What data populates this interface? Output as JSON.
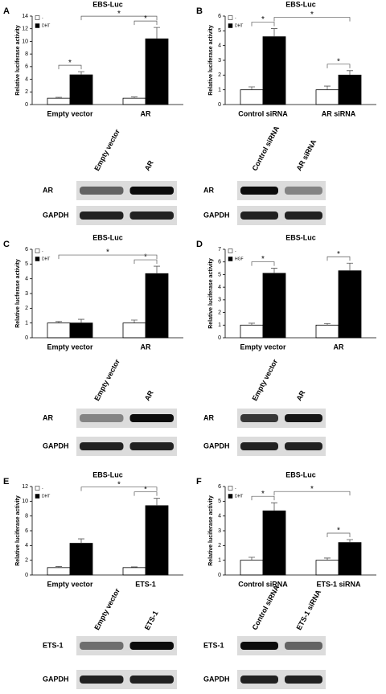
{
  "chart_data": [
    {
      "type": "bar",
      "panel_label": "A",
      "title": "EBS-Luc",
      "ylabel": "Relative luciferase activity",
      "categories": [
        "Empty vector",
        "AR"
      ],
      "series": [
        {
          "name": "-",
          "color": "#ffffff",
          "values": [
            1,
            1
          ],
          "errors": [
            0.15,
            0.2
          ]
        },
        {
          "name": "DHT",
          "color": "#000000",
          "values": [
            4.7,
            10.4
          ],
          "errors": [
            0.5,
            1.8
          ]
        }
      ],
      "ylim": [
        0,
        14
      ],
      "yticks": [
        0,
        2,
        4,
        6,
        8,
        10,
        12,
        14
      ],
      "legend": "upper left",
      "annotations": [
        "*",
        "*",
        "*"
      ]
    },
    {
      "type": "bar",
      "panel_label": "B",
      "title": "EBS-Luc",
      "ylabel": "Relative luciferase activity",
      "categories": [
        "Control siRNA",
        "AR siRNA"
      ],
      "series": [
        {
          "name": "-",
          "color": "#ffffff",
          "values": [
            1,
            1
          ],
          "errors": [
            0.2,
            0.25
          ]
        },
        {
          "name": "DHT",
          "color": "#000000",
          "values": [
            4.6,
            2.0
          ],
          "errors": [
            0.55,
            0.3
          ]
        }
      ],
      "ylim": [
        0,
        6
      ],
      "yticks": [
        0,
        1,
        2,
        3,
        4,
        5,
        6
      ],
      "legend": "upper left",
      "annotations": [
        "*",
        "*",
        "*"
      ]
    },
    {
      "type": "bar",
      "panel_label": "C",
      "title": "EBS-Luc",
      "ylabel": "Relative lucferase activity",
      "categories": [
        "Empty vector",
        "AR"
      ],
      "series": [
        {
          "name": "-",
          "color": "#ffffff",
          "values": [
            1,
            1
          ],
          "errors": [
            0.1,
            0.2
          ]
        },
        {
          "name": "DHT",
          "color": "#000000",
          "values": [
            1,
            4.35
          ],
          "errors": [
            0.25,
            0.5
          ]
        }
      ],
      "ylim": [
        0,
        6
      ],
      "yticks": [
        0,
        1,
        2,
        3,
        4,
        5,
        6
      ],
      "legend": "upper left",
      "annotations": [
        "*",
        "*"
      ]
    },
    {
      "type": "bar",
      "panel_label": "D",
      "title": "EBS-Luc",
      "ylabel": "Relative luciferase activity",
      "categories": [
        "Empty vector",
        "AR"
      ],
      "series": [
        {
          "name": "-",
          "color": "#ffffff",
          "values": [
            1,
            1
          ],
          "errors": [
            0.15,
            0.12
          ]
        },
        {
          "name": "HGF",
          "color": "#000000",
          "values": [
            5.1,
            5.3
          ],
          "errors": [
            0.4,
            0.6
          ]
        }
      ],
      "ylim": [
        0,
        7
      ],
      "yticks": [
        0,
        1,
        2,
        3,
        4,
        5,
        6,
        7
      ],
      "legend": "upper left",
      "annotations": [
        "*",
        "*"
      ]
    },
    {
      "type": "bar",
      "panel_label": "E",
      "title": "EBS-Luc",
      "ylabel": "Relative luciferase activity",
      "categories": [
        "Empty vector",
        "ETS-1"
      ],
      "series": [
        {
          "name": "-",
          "color": "#ffffff",
          "values": [
            1,
            1
          ],
          "errors": [
            0.15,
            0.1
          ]
        },
        {
          "name": "DHT",
          "color": "#000000",
          "values": [
            4.3,
            9.4
          ],
          "errors": [
            0.6,
            1.0
          ]
        }
      ],
      "ylim": [
        0,
        12
      ],
      "yticks": [
        0,
        2,
        4,
        6,
        8,
        10,
        12
      ],
      "legend": "upper left",
      "annotations": [
        "*",
        "*"
      ]
    },
    {
      "type": "bar",
      "panel_label": "F",
      "title": "EBS-Luc",
      "ylabel": "Relative luciferase activity",
      "categories": [
        "Control siRNA",
        "ETS-1 siRNA"
      ],
      "series": [
        {
          "name": "-",
          "color": "#ffffff",
          "values": [
            1,
            1
          ],
          "errors": [
            0.2,
            0.15
          ]
        },
        {
          "name": "DHT",
          "color": "#000000",
          "values": [
            4.35,
            2.2
          ],
          "errors": [
            0.55,
            0.2
          ]
        }
      ],
      "ylim": [
        0,
        6
      ],
      "yticks": [
        0,
        1,
        2,
        3,
        4,
        5,
        6
      ],
      "legend": "upper left",
      "annotations": [
        "*",
        "*",
        "*"
      ]
    }
  ],
  "blots": [
    {
      "lanes": [
        "Empty vector",
        "AR"
      ],
      "rows": [
        "AR",
        "GAPDH"
      ]
    },
    {
      "lanes": [
        "Control siRNA",
        "AR siRNA"
      ],
      "rows": [
        "AR",
        "GAPDH"
      ]
    },
    {
      "lanes": [
        "Empty vector",
        "AR"
      ],
      "rows": [
        "AR",
        "GAPDH"
      ]
    },
    {
      "lanes": [
        "Empty vector",
        "AR"
      ],
      "rows": [
        "AR",
        "GAPDH"
      ]
    },
    {
      "lanes": [
        "Empty vector",
        "ETS-1"
      ],
      "rows": [
        "ETS-1",
        "GAPDH"
      ]
    },
    {
      "lanes": [
        "Control siRNA",
        "ETS-1 siRNA"
      ],
      "rows": [
        "ETS-1",
        "GAPDH"
      ]
    }
  ]
}
